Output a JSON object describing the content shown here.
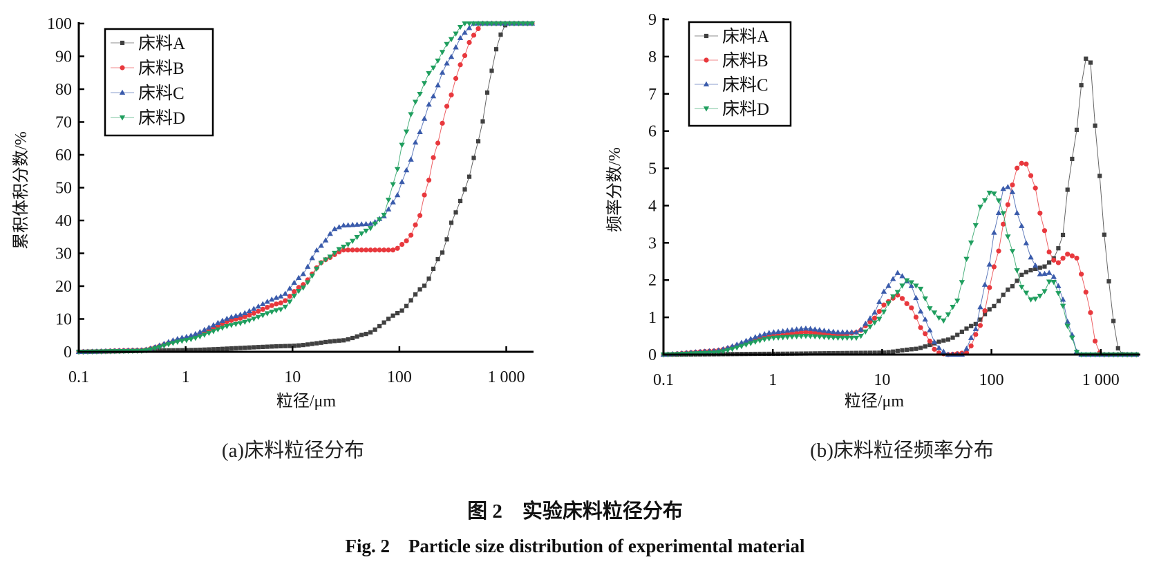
{
  "colors": {
    "A": "#404040",
    "B": "#e8383d",
    "C": "#3a5bab",
    "D": "#1f9e5e"
  },
  "chart_data": [
    {
      "id": "a",
      "type": "line",
      "xscale": "log",
      "xlim": [
        0.1,
        1800
      ],
      "ylim": [
        0,
        100
      ],
      "xticks": [
        0.1,
        1,
        10,
        100,
        1000
      ],
      "xtick_labels": [
        "0.1",
        "1",
        "10",
        "100",
        "1 000"
      ],
      "yticks": [
        0,
        10,
        20,
        30,
        40,
        50,
        60,
        70,
        80,
        90,
        100
      ],
      "ytick_labels": [
        "0",
        "10",
        "20",
        "30",
        "40",
        "50",
        "60",
        "70",
        "80",
        "90",
        "100"
      ],
      "xlabel": "粒径/μm",
      "ylabel": "累积体积分数/%",
      "subtitle": "(a)床料粒径分布",
      "legend_position": "top-left",
      "series": [
        {
          "key": "A",
          "name": "床料A",
          "marker": "square",
          "x": [
            0.1,
            1,
            10,
            30,
            50,
            100,
            170,
            250,
            330,
            420,
            510,
            600,
            700,
            800,
            900,
            1000,
            1800
          ],
          "y": [
            0,
            0.5,
            1.8,
            3.5,
            5.5,
            12,
            20,
            30,
            42,
            50,
            60,
            70,
            83,
            92,
            97,
            100,
            100
          ]
        },
        {
          "key": "B",
          "name": "床料B",
          "marker": "circle",
          "x": [
            0.1,
            0.4,
            1,
            3,
            8,
            12,
            20,
            30,
            90,
            120,
            150,
            180,
            220,
            280,
            380,
            480,
            600,
            1800
          ],
          "y": [
            0,
            0.5,
            4,
            10,
            15,
            20,
            28,
            31,
            31,
            34,
            40,
            50,
            62,
            75,
            88,
            96,
            100,
            100
          ]
        },
        {
          "key": "C",
          "name": "床料C",
          "marker": "triangle-up",
          "x": [
            0.1,
            0.4,
            1,
            3,
            8,
            12,
            18,
            25,
            30,
            55,
            70,
            90,
            120,
            150,
            200,
            280,
            400,
            500,
            1800
          ],
          "y": [
            0,
            0.5,
            4.5,
            11,
            17,
            23,
            32,
            37.5,
            38.5,
            39,
            41,
            46,
            56,
            66,
            77,
            88,
            97,
            100,
            100
          ]
        },
        {
          "key": "D",
          "name": "床料D",
          "marker": "triangle-down",
          "x": [
            0.1,
            0.4,
            1,
            3,
            8,
            12,
            20,
            30,
            50,
            70,
            90,
            110,
            140,
            200,
            300,
            400,
            1800
          ],
          "y": [
            0,
            0.3,
            3.5,
            8.5,
            13,
            19,
            28,
            32,
            37,
            41,
            52,
            65,
            76,
            86,
            95,
            100,
            100
          ]
        }
      ]
    },
    {
      "id": "b",
      "type": "line",
      "xscale": "log",
      "xlim": [
        0.1,
        2300
      ],
      "ylim": [
        0,
        9
      ],
      "xticks": [
        0.1,
        1,
        10,
        100,
        1000
      ],
      "xtick_labels": [
        "0.1",
        "1",
        "10",
        "100",
        "1 000"
      ],
      "yticks": [
        0,
        1,
        2,
        3,
        4,
        5,
        6,
        7,
        8,
        9
      ],
      "ytick_labels": [
        "0",
        "1",
        "2",
        "3",
        "4",
        "5",
        "6",
        "7",
        "8",
        "9"
      ],
      "xlabel": "粒径/μm",
      "ylabel": "频率分数/%",
      "subtitle": "(b)床料粒径频率分布",
      "legend_position": "top-left",
      "series": [
        {
          "key": "A",
          "name": "床料A",
          "marker": "square",
          "x": [
            0.1,
            1,
            10,
            20,
            40,
            70,
            100,
            150,
            200,
            250,
            300,
            380,
            450,
            520,
            600,
            650,
            720,
            800,
            950,
            1100,
            1250,
            1400,
            1600,
            2300
          ],
          "y": [
            0,
            0.02,
            0.05,
            0.15,
            0.4,
            0.8,
            1.25,
            1.8,
            2.2,
            2.3,
            2.35,
            2.6,
            3.2,
            4.9,
            6.0,
            7.1,
            7.95,
            7.9,
            5.1,
            3.0,
            1.3,
            0.2,
            0,
            0
          ]
        },
        {
          "key": "B",
          "name": "床料B",
          "marker": "circle",
          "x": [
            0.1,
            0.3,
            1,
            2,
            4,
            6,
            8,
            11,
            14,
            18,
            24,
            32,
            40,
            60,
            80,
            110,
            140,
            170,
            200,
            240,
            300,
            350,
            400,
            500,
            600,
            750,
            900,
            1000,
            2300
          ],
          "y": [
            0,
            0.1,
            0.5,
            0.6,
            0.52,
            0.6,
            0.9,
            1.4,
            1.6,
            1.3,
            0.6,
            0.05,
            0,
            0.05,
            0.8,
            2.5,
            4.0,
            5.0,
            5.2,
            4.7,
            3.4,
            2.6,
            2.45,
            2.7,
            2.6,
            1.6,
            0.3,
            0,
            0
          ]
        },
        {
          "key": "C",
          "name": "床料C",
          "marker": "triangle-up",
          "x": [
            0.1,
            0.3,
            1,
            2,
            4,
            6,
            8,
            11,
            14,
            18,
            24,
            32,
            40,
            55,
            70,
            90,
            110,
            130,
            150,
            180,
            230,
            280,
            350,
            420,
            520,
            620,
            2300
          ],
          "y": [
            0,
            0.1,
            0.6,
            0.7,
            0.6,
            0.6,
            1.0,
            1.8,
            2.2,
            1.9,
            1.0,
            0.2,
            0,
            0,
            0.6,
            2.0,
            3.5,
            4.5,
            4.5,
            3.6,
            2.6,
            2.15,
            2.2,
            1.8,
            0.7,
            0,
            0
          ]
        },
        {
          "key": "D",
          "name": "床料D",
          "marker": "triangle-down",
          "x": [
            0.1,
            0.3,
            1,
            2,
            4,
            6,
            9,
            13,
            17,
            22,
            28,
            36,
            48,
            65,
            80,
            100,
            120,
            150,
            190,
            235,
            290,
            355,
            420,
            520,
            620,
            2300
          ],
          "y": [
            0,
            0.05,
            0.45,
            0.5,
            0.45,
            0.45,
            0.9,
            1.6,
            2.0,
            1.8,
            1.2,
            0.9,
            1.4,
            3.0,
            4.0,
            4.4,
            4.1,
            2.9,
            1.8,
            1.45,
            1.6,
            2.05,
            1.6,
            0.6,
            0,
            0
          ]
        }
      ]
    }
  ],
  "caption": {
    "cn": "图 2　实验床料粒径分布",
    "en": "Fig. 2　Particle size distribution of experimental material"
  }
}
